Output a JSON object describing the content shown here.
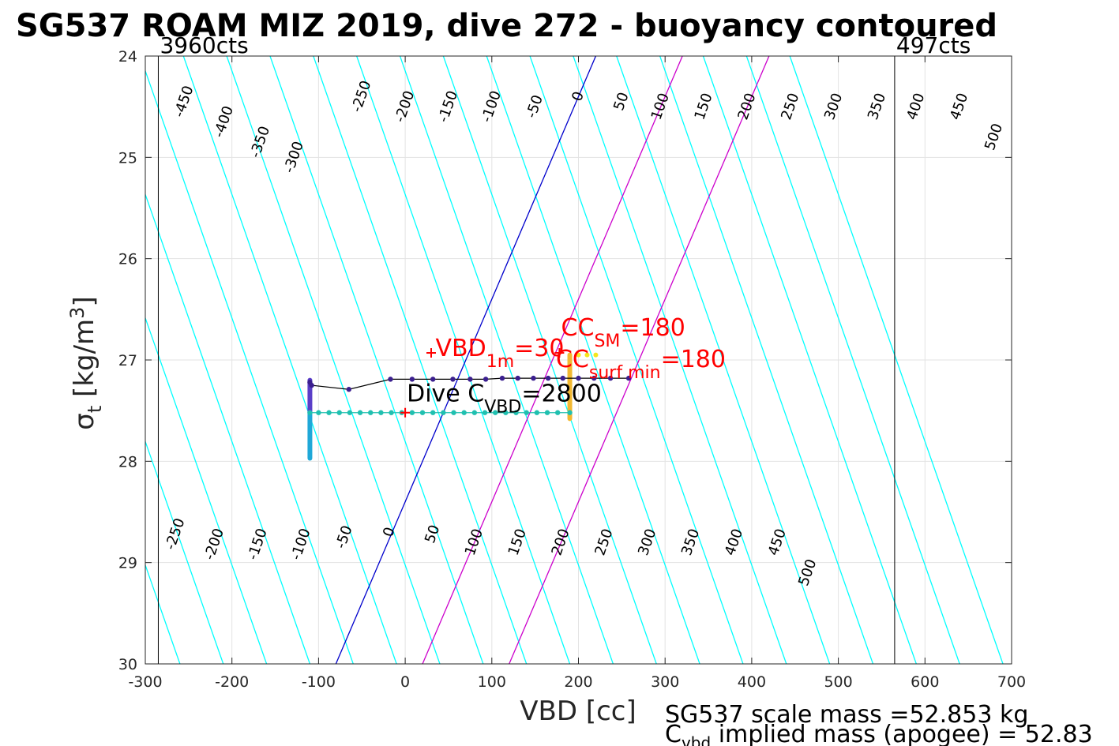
{
  "chart_data": {
    "type": "line",
    "title": "SG537 ROAM MIZ 2019, dive 272 - buoyancy contoured",
    "xlabel": "VBD [cc]",
    "ylabel_symbol": "σ",
    "ylabel_sub": "t",
    "ylabel_unit": "[kg/m",
    "ylabel_unit_sup": "3",
    "ylabel_unit_close": "]",
    "xlim": [
      -300,
      700
    ],
    "ylim": [
      24,
      30
    ],
    "y_reversed": true,
    "grid": true,
    "xticks": [
      "-300",
      "-200",
      "-100",
      "0",
      "100",
      "200",
      "300",
      "400",
      "500",
      "600",
      "700"
    ],
    "xtick_values": [
      -300,
      -200,
      -100,
      0,
      100,
      200,
      300,
      400,
      500,
      600,
      700
    ],
    "yticks": [
      "24",
      "25",
      "26",
      "27",
      "28",
      "29",
      "30"
    ],
    "ytick_values": [
      24,
      25,
      26,
      27,
      28,
      29,
      30
    ],
    "count_lines": [
      {
        "vbd": -285,
        "label": "3960cts"
      },
      {
        "vbd": 565,
        "label": "497cts"
      }
    ],
    "contour_slope_cc_per_sigma": 41,
    "contour_levels": [
      -450,
      -400,
      -350,
      -300,
      -250,
      -200,
      -150,
      -100,
      -50,
      0,
      50,
      100,
      150,
      200,
      250,
      300,
      350,
      400,
      450,
      500
    ],
    "contour_ref_sigma": 27,
    "contour_ref_vbd": [
      -383,
      -333,
      -283,
      -233,
      -183,
      -133,
      -83,
      -33,
      17,
      67,
      117,
      167,
      217,
      267,
      317,
      367,
      417,
      467,
      517,
      567
    ],
    "contour_labels_top": [
      {
        "text": "-450",
        "vbd": -255,
        "sigma": 24.45
      },
      {
        "text": "-400",
        "vbd": -209,
        "sigma": 24.65
      },
      {
        "text": "-350",
        "vbd": -167,
        "sigma": 24.85
      },
      {
        "text": "-300",
        "vbd": -128,
        "sigma": 25.0
      },
      {
        "text": "-250",
        "vbd": -50,
        "sigma": 24.4
      },
      {
        "text": "-200",
        "vbd": 0,
        "sigma": 24.5
      },
      {
        "text": "-150",
        "vbd": 50,
        "sigma": 24.5
      },
      {
        "text": "-100",
        "vbd": 100,
        "sigma": 24.5
      },
      {
        "text": "-50",
        "vbd": 150,
        "sigma": 24.5
      },
      {
        "text": "0",
        "vbd": 200,
        "sigma": 24.4
      },
      {
        "text": "50",
        "vbd": 250,
        "sigma": 24.45
      },
      {
        "text": "100",
        "vbd": 295,
        "sigma": 24.5
      },
      {
        "text": "150",
        "vbd": 345,
        "sigma": 24.5
      },
      {
        "text": "200",
        "vbd": 395,
        "sigma": 24.5
      },
      {
        "text": "250",
        "vbd": 445,
        "sigma": 24.5
      },
      {
        "text": "300",
        "vbd": 495,
        "sigma": 24.5
      },
      {
        "text": "350",
        "vbd": 545,
        "sigma": 24.5
      },
      {
        "text": "400",
        "vbd": 590,
        "sigma": 24.5
      },
      {
        "text": "450",
        "vbd": 640,
        "sigma": 24.5
      },
      {
        "text": "500",
        "vbd": 680,
        "sigma": 24.8
      }
    ],
    "contour_labels_bottom": [
      {
        "text": "-250",
        "vbd": -265,
        "sigma": 28.72
      },
      {
        "text": "-200",
        "vbd": -220,
        "sigma": 28.82
      },
      {
        "text": "-150",
        "vbd": -170,
        "sigma": 28.82
      },
      {
        "text": "-100",
        "vbd": -120,
        "sigma": 28.82
      },
      {
        "text": "-50",
        "vbd": -70,
        "sigma": 28.75
      },
      {
        "text": "0",
        "vbd": -18,
        "sigma": 28.7
      },
      {
        "text": "50",
        "vbd": 32,
        "sigma": 28.72
      },
      {
        "text": "100",
        "vbd": 80,
        "sigma": 28.8
      },
      {
        "text": "150",
        "vbd": 130,
        "sigma": 28.8
      },
      {
        "text": "200",
        "vbd": 180,
        "sigma": 28.8
      },
      {
        "text": "250",
        "vbd": 230,
        "sigma": 28.8
      },
      {
        "text": "300",
        "vbd": 280,
        "sigma": 28.8
      },
      {
        "text": "350",
        "vbd": 330,
        "sigma": 28.8
      },
      {
        "text": "400",
        "vbd": 380,
        "sigma": 28.8
      },
      {
        "text": "450",
        "vbd": 430,
        "sigma": 28.8
      },
      {
        "text": "500",
        "vbd": 465,
        "sigma": 29.1
      }
    ],
    "reference_lines": [
      {
        "color": "#0000cc",
        "x": [
          -80,
          220
        ],
        "y": [
          30,
          24
        ]
      },
      {
        "color": "#cc00cc",
        "x": [
          20,
          320
        ],
        "y": [
          30,
          24
        ]
      },
      {
        "color": "#cc00cc",
        "x": [
          120,
          420
        ],
        "y": [
          30,
          24
        ]
      }
    ],
    "series": [
      {
        "color": "#3b1f8f",
        "points": [
          {
            "x": -110,
            "y": 27.22
          },
          {
            "x": -108,
            "y": 27.25
          },
          {
            "x": -65,
            "y": 27.29
          },
          {
            "x": -17,
            "y": 27.19
          },
          {
            "x": 8,
            "y": 27.19
          },
          {
            "x": 32,
            "y": 27.19
          },
          {
            "x": 55,
            "y": 27.19
          },
          {
            "x": 75,
            "y": 27.19
          },
          {
            "x": 93,
            "y": 27.19
          },
          {
            "x": 112,
            "y": 27.18
          },
          {
            "x": 130,
            "y": 27.18
          },
          {
            "x": 148,
            "y": 27.18
          },
          {
            "x": 165,
            "y": 27.18
          },
          {
            "x": 182,
            "y": 27.18
          },
          {
            "x": 200,
            "y": 27.18
          },
          {
            "x": 218,
            "y": 27.18
          },
          {
            "x": 237,
            "y": 27.18
          },
          {
            "x": 258,
            "y": 27.18
          }
        ]
      },
      {
        "color": "#20c0b0",
        "points": [
          {
            "x": -110,
            "y": 27.52
          },
          {
            "x": -100,
            "y": 27.52
          },
          {
            "x": -88,
            "y": 27.52
          },
          {
            "x": -76,
            "y": 27.52
          },
          {
            "x": -64,
            "y": 27.52
          },
          {
            "x": -52,
            "y": 27.52
          },
          {
            "x": -40,
            "y": 27.52
          },
          {
            "x": -28,
            "y": 27.52
          },
          {
            "x": -16,
            "y": 27.52
          },
          {
            "x": -4,
            "y": 27.52
          },
          {
            "x": 8,
            "y": 27.52
          },
          {
            "x": 20,
            "y": 27.52
          },
          {
            "x": 32,
            "y": 27.52
          },
          {
            "x": 44,
            "y": 27.52
          },
          {
            "x": 56,
            "y": 27.52
          },
          {
            "x": 68,
            "y": 27.52
          },
          {
            "x": 80,
            "y": 27.52
          },
          {
            "x": 92,
            "y": 27.52
          },
          {
            "x": 104,
            "y": 27.52
          },
          {
            "x": 116,
            "y": 27.52
          },
          {
            "x": 128,
            "y": 27.52
          },
          {
            "x": 140,
            "y": 27.52
          },
          {
            "x": 152,
            "y": 27.52
          },
          {
            "x": 164,
            "y": 27.52
          },
          {
            "x": 176,
            "y": 27.52
          },
          {
            "x": 190,
            "y": 27.52
          }
        ]
      }
    ],
    "vertical_bars": [
      {
        "x": -110,
        "y0": 27.2,
        "y1": 27.52,
        "color": "#5a3ec8"
      },
      {
        "x": -110,
        "y0": 27.52,
        "y1": 27.97,
        "color": "#1fa8d8"
      },
      {
        "x": 190,
        "y0": 26.95,
        "y1": 27.58,
        "color": "#f2b830"
      }
    ],
    "yellow_points": [
      {
        "x": 200,
        "y": 26.95
      },
      {
        "x": 210,
        "y": 26.95
      },
      {
        "x": 220,
        "y": 26.95
      }
    ],
    "markers": [
      {
        "x": 30,
        "y": 26.93
      },
      {
        "x": 178,
        "y": 26.93
      },
      {
        "x": 0,
        "y": 27.52
      }
    ],
    "annotations": [
      {
        "id": "vbd1m",
        "main": "VBD",
        "sub": "1m",
        "tail": "=30",
        "x": 35,
        "y": 26.85
      },
      {
        "id": "ccsm",
        "main": "CC",
        "sub": "SM",
        "tail": "=180",
        "x": 180,
        "y": 26.65
      },
      {
        "id": "ccsurf",
        "main": "CC",
        "sub": "surf min",
        "tail": "=180",
        "x": 174,
        "y": 26.96
      },
      {
        "id": "divec",
        "main": "Dive C",
        "sub": "VBD",
        "tail": "=2800",
        "x": 0,
        "y": 27.3
      }
    ],
    "footer": {
      "line1": "SG537 scale mass =52.853 kg",
      "line2_main": "C",
      "line2_sub": "vbd",
      "line2_tail": " implied mass (apogee) = 52.83"
    }
  }
}
